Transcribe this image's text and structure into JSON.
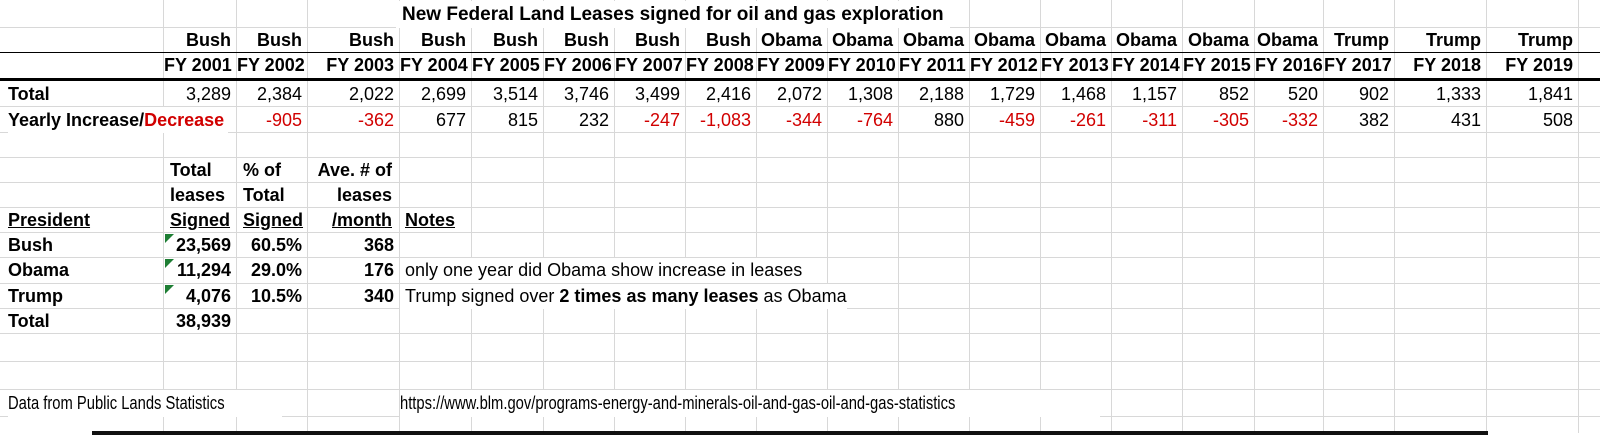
{
  "title": "New Federal Land Leases signed for oil and gas exploration",
  "colors": {
    "negative_text": "#d10000",
    "flag_triangle_green": "#1e7e34",
    "gridline": "#d8d8d8",
    "header_border": "#000000"
  },
  "fy_table": {
    "total_label": "Total",
    "change_label_black": "Yearly Increase/",
    "change_label_red": "Decrease",
    "columns": [
      {
        "president": "Bush",
        "fy": "FY 2001",
        "total": "3,289",
        "change": ""
      },
      {
        "president": "Bush",
        "fy": "FY 2002",
        "total": "2,384",
        "change": "-905"
      },
      {
        "president": "Bush",
        "fy": "FY 2003",
        "total": "2,022",
        "change": "-362"
      },
      {
        "president": "Bush",
        "fy": "FY 2004",
        "total": "2,699",
        "change": "677"
      },
      {
        "president": "Bush",
        "fy": "FY 2005",
        "total": "3,514",
        "change": "815"
      },
      {
        "president": "Bush",
        "fy": "FY 2006",
        "total": "3,746",
        "change": "232"
      },
      {
        "president": "Bush",
        "fy": "FY 2007",
        "total": "3,499",
        "change": "-247"
      },
      {
        "president": "Bush",
        "fy": "FY 2008",
        "total": "2,416",
        "change": "-1,083"
      },
      {
        "president": "Obama",
        "fy": "FY 2009",
        "total": "2,072",
        "change": "-344"
      },
      {
        "president": "Obama",
        "fy": "FY 2010",
        "total": "1,308",
        "change": "-764"
      },
      {
        "president": "Obama",
        "fy": "FY 2011",
        "total": "2,188",
        "change": "880"
      },
      {
        "president": "Obama",
        "fy": "FY 2012",
        "total": "1,729",
        "change": "-459"
      },
      {
        "president": "Obama",
        "fy": "FY 2013",
        "total": "1,468",
        "change": "-261"
      },
      {
        "president": "Obama",
        "fy": "FY 2014",
        "total": "1,157",
        "change": "-311"
      },
      {
        "president": "Obama",
        "fy": "FY 2015",
        "total": "852",
        "change": "-305"
      },
      {
        "president": "Obama",
        "fy": "FY 2016",
        "total": "520",
        "change": "-332"
      },
      {
        "president": "Trump",
        "fy": "FY 2017",
        "total": "902",
        "change": "382"
      },
      {
        "president": "Trump",
        "fy": "FY 2018",
        "total": "1,333",
        "change": "431"
      },
      {
        "president": "Trump",
        "fy": "FY 2019",
        "total": "1,841",
        "change": "508"
      }
    ]
  },
  "summary_table": {
    "headers": {
      "president": "President",
      "total_leases": [
        "Total",
        "leases",
        "Signed"
      ],
      "pct": [
        "% of",
        "Total",
        "Signed"
      ],
      "avg": [
        "Ave. # of",
        "leases",
        "/month"
      ],
      "notes": "Notes"
    },
    "rows": [
      {
        "president": "Bush",
        "total": "23,569",
        "pct": "60.5%",
        "per_month": "368",
        "note": "",
        "flag": true
      },
      {
        "president": "Obama",
        "total": "11,294",
        "pct": "29.0%",
        "per_month": "176",
        "note": "only one year did Obama show increase in leases",
        "flag": true
      },
      {
        "president": "Trump",
        "total": "4,076",
        "pct": "10.5%",
        "per_month": "340",
        "note_parts": [
          "Trump  signed over ",
          "2 times as many leases",
          " as Obama"
        ],
        "flag": true
      },
      {
        "president": "Total",
        "total": "38,939",
        "pct": "",
        "per_month": "",
        "note": "",
        "flag": false
      }
    ]
  },
  "footer": {
    "source": "Data from Public Lands Statistics",
    "url": "https://www.blm.gov/programs-energy-and-minerals-oil-and-gas-oil-and-gas-statistics"
  }
}
